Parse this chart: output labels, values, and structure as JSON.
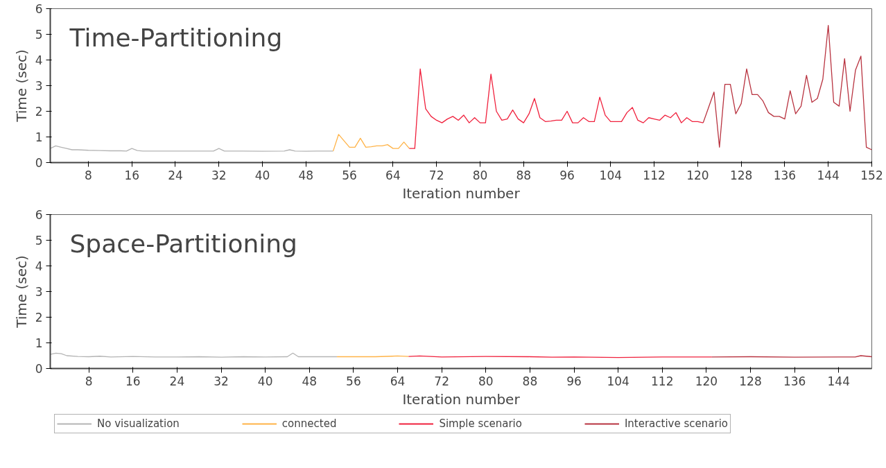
{
  "chart_data": [
    {
      "type": "line",
      "title": "Time-Partitioning",
      "xlabel": "Iteration number",
      "ylabel": "Time (sec)",
      "xlim": [
        1,
        152
      ],
      "ylim": [
        0,
        6
      ],
      "xticks": [
        8,
        16,
        24,
        32,
        40,
        48,
        56,
        64,
        72,
        80,
        88,
        96,
        104,
        112,
        120,
        128,
        136,
        144,
        152
      ],
      "yticks": [
        0,
        1,
        2,
        3,
        4,
        5,
        6
      ],
      "grid": false,
      "series": [
        {
          "color": "#b4b4b4",
          "x": [
            1,
            2,
            3,
            4,
            5,
            6,
            8,
            10,
            12,
            14,
            15,
            16,
            17,
            18,
            20,
            24,
            28,
            31,
            32,
            33,
            34,
            36,
            40,
            44,
            45,
            46,
            48,
            50,
            53
          ],
          "values": [
            0.55,
            0.65,
            0.6,
            0.55,
            0.5,
            0.5,
            0.48,
            0.47,
            0.46,
            0.46,
            0.45,
            0.55,
            0.47,
            0.45,
            0.45,
            0.45,
            0.45,
            0.45,
            0.55,
            0.45,
            0.45,
            0.45,
            0.44,
            0.45,
            0.5,
            0.45,
            0.44,
            0.45,
            0.45
          ]
        },
        {
          "color": "#ffb347",
          "x": [
            53,
            54,
            55,
            56,
            57,
            58,
            59,
            60,
            61,
            62,
            63,
            64,
            65,
            66,
            67
          ],
          "values": [
            0.45,
            1.1,
            0.85,
            0.6,
            0.6,
            0.95,
            0.6,
            0.62,
            0.65,
            0.65,
            0.7,
            0.55,
            0.55,
            0.8,
            0.55
          ]
        },
        {
          "color": "#f0203c",
          "x": [
            67,
            68,
            69,
            70,
            71,
            72,
            73,
            74,
            75,
            76,
            77,
            78,
            79,
            80,
            81,
            82,
            83,
            84,
            85,
            86,
            87,
            88,
            89,
            90,
            91,
            92,
            93,
            94,
            95,
            96,
            97,
            98,
            99,
            100,
            101,
            102,
            103,
            104,
            105,
            106,
            107,
            108,
            109,
            110,
            111,
            112,
            113,
            114,
            115,
            116,
            117,
            118,
            119,
            120,
            121
          ],
          "values": [
            0.55,
            0.55,
            3.65,
            2.1,
            1.8,
            1.65,
            1.55,
            1.7,
            1.8,
            1.65,
            1.85,
            1.55,
            1.75,
            1.55,
            1.55,
            3.45,
            2.0,
            1.65,
            1.7,
            2.05,
            1.7,
            1.55,
            1.9,
            2.5,
            1.75,
            1.6,
            1.62,
            1.65,
            1.65,
            2.0,
            1.55,
            1.55,
            1.75,
            1.6,
            1.6,
            2.55,
            1.85,
            1.6,
            1.6,
            1.6,
            1.95,
            2.15,
            1.65,
            1.55,
            1.75,
            1.7,
            1.65,
            1.85,
            1.75,
            1.95,
            1.55,
            1.75,
            1.6,
            1.6,
            1.55
          ]
        },
        {
          "color": "#b8323f",
          "x": [
            121,
            122,
            123,
            124,
            125,
            126,
            127,
            128,
            129,
            130,
            131,
            132,
            133,
            134,
            135,
            136,
            137,
            138,
            139,
            140,
            141,
            142,
            143,
            144,
            145,
            146,
            147,
            148,
            149,
            150,
            151,
            152
          ],
          "values": [
            1.55,
            2.15,
            2.75,
            0.6,
            3.05,
            3.05,
            1.9,
            2.3,
            3.65,
            2.65,
            2.65,
            2.4,
            1.95,
            1.8,
            1.8,
            1.7,
            2.8,
            1.9,
            2.2,
            3.4,
            2.35,
            2.5,
            3.25,
            5.35,
            2.35,
            2.2,
            4.05,
            2.0,
            3.6,
            4.15,
            0.6,
            0.5
          ]
        }
      ]
    },
    {
      "type": "line",
      "title": "Space-Partitioning",
      "xlabel": "Iteration number",
      "ylabel": "Time (sec)",
      "xlim": [
        1,
        150
      ],
      "ylim": [
        0,
        6
      ],
      "xticks": [
        8,
        16,
        24,
        32,
        40,
        48,
        56,
        64,
        72,
        80,
        88,
        96,
        104,
        112,
        120,
        128,
        136,
        144
      ],
      "yticks": [
        0,
        1,
        2,
        3,
        4,
        5,
        6
      ],
      "grid": false,
      "legend": "bottom",
      "series": [
        {
          "name": "No visualization",
          "color": "#b4b4b4",
          "x": [
            1,
            2,
            3,
            4,
            6,
            8,
            10,
            12,
            16,
            20,
            24,
            28,
            32,
            36,
            40,
            44,
            45,
            46,
            48,
            53
          ],
          "values": [
            0.55,
            0.6,
            0.58,
            0.5,
            0.47,
            0.46,
            0.48,
            0.45,
            0.47,
            0.45,
            0.45,
            0.46,
            0.44,
            0.46,
            0.45,
            0.46,
            0.6,
            0.46,
            0.46,
            0.46
          ]
        },
        {
          "name": "connected",
          "color": "#ffb347",
          "x": [
            53,
            56,
            60,
            63,
            64,
            66
          ],
          "values": [
            0.46,
            0.46,
            0.46,
            0.48,
            0.49,
            0.47
          ]
        },
        {
          "name": "Simple scenario",
          "color": "#f0203c",
          "x": [
            66,
            68,
            72,
            80,
            88,
            92,
            96,
            104,
            112,
            121
          ],
          "values": [
            0.47,
            0.49,
            0.45,
            0.47,
            0.46,
            0.44,
            0.45,
            0.43,
            0.45,
            0.45
          ]
        },
        {
          "name": "Interactive scenario",
          "color": "#b8323f",
          "x": [
            121,
            128,
            136,
            144,
            147,
            148,
            150
          ],
          "values": [
            0.45,
            0.46,
            0.44,
            0.45,
            0.45,
            0.5,
            0.46
          ]
        }
      ]
    }
  ]
}
